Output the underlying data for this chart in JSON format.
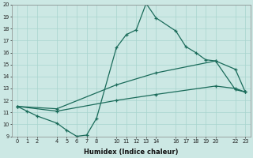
{
  "xlabel": "Humidex (Indice chaleur)",
  "bg_color": "#cce8e4",
  "grid_color": "#a8d4ce",
  "line_color": "#1a6b5a",
  "line1_x": [
    0,
    1,
    2,
    4,
    5,
    6,
    7,
    8,
    10,
    11,
    12,
    13,
    14,
    16,
    17,
    18,
    19,
    20,
    22,
    23
  ],
  "line1_y": [
    11.5,
    11.1,
    10.7,
    10.1,
    9.5,
    9.0,
    9.1,
    10.5,
    16.4,
    17.5,
    17.9,
    20.1,
    18.9,
    17.8,
    16.5,
    16.0,
    15.4,
    15.3,
    12.9,
    12.7
  ],
  "line2_x": [
    0,
    4,
    10,
    14,
    20,
    22,
    23
  ],
  "line2_y": [
    11.5,
    11.3,
    13.3,
    14.3,
    15.3,
    14.6,
    12.7
  ],
  "line3_x": [
    0,
    4,
    10,
    14,
    20,
    22,
    23
  ],
  "line3_y": [
    11.5,
    11.1,
    12.0,
    12.5,
    13.2,
    13.0,
    12.7
  ],
  "ylim": [
    9,
    20
  ],
  "xlim": [
    -0.5,
    23.5
  ],
  "yticks": [
    9,
    10,
    11,
    12,
    13,
    14,
    15,
    16,
    17,
    18,
    19,
    20
  ],
  "xticks": [
    0,
    1,
    2,
    4,
    5,
    6,
    7,
    8,
    10,
    11,
    12,
    13,
    14,
    16,
    17,
    18,
    19,
    20,
    22,
    23
  ]
}
